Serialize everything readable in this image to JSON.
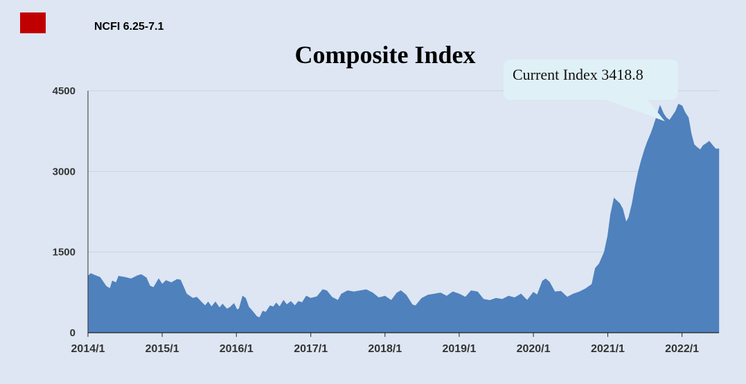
{
  "legend": {
    "label": "NCFI 6.25-7.1",
    "color": "#c00000"
  },
  "annotation": {
    "text": "Current Index 3418.8"
  },
  "chart_data": {
    "type": "area",
    "title": "Composite Index",
    "xlabel": "",
    "ylabel": "",
    "ylim": [
      0,
      4500
    ],
    "y_ticks": [
      "0",
      "1500",
      "3000",
      "4500"
    ],
    "x_tick_labels": [
      "2014/1",
      "2015/1",
      "2016/1",
      "2017/1",
      "2018/1",
      "2019/1",
      "2020/1",
      "2021/1",
      "2022/1"
    ],
    "grid": true,
    "fill_color": "#4f81bd",
    "series": [
      {
        "name": "NCFI 6.25-7.1",
        "points": [
          [
            "2014-01-01",
            1050
          ],
          [
            "2014-01-15",
            1100
          ],
          [
            "2014-02-01",
            1070
          ],
          [
            "2014-03-01",
            1030
          ],
          [
            "2014-04-01",
            860
          ],
          [
            "2014-04-20",
            820
          ],
          [
            "2014-05-01",
            960
          ],
          [
            "2014-05-20",
            930
          ],
          [
            "2014-06-01",
            1050
          ],
          [
            "2014-07-01",
            1030
          ],
          [
            "2014-08-01",
            1000
          ],
          [
            "2014-09-01",
            1060
          ],
          [
            "2014-09-20",
            1080
          ],
          [
            "2014-10-15",
            1020
          ],
          [
            "2014-11-01",
            870
          ],
          [
            "2014-11-20",
            840
          ],
          [
            "2014-12-15",
            1000
          ],
          [
            "2015-01-01",
            900
          ],
          [
            "2015-01-20",
            970
          ],
          [
            "2015-02-15",
            930
          ],
          [
            "2015-03-15",
            990
          ],
          [
            "2015-04-01",
            980
          ],
          [
            "2015-05-01",
            720
          ],
          [
            "2015-06-01",
            640
          ],
          [
            "2015-06-20",
            660
          ],
          [
            "2015-07-15",
            560
          ],
          [
            "2015-08-01",
            500
          ],
          [
            "2015-08-15",
            570
          ],
          [
            "2015-09-01",
            480
          ],
          [
            "2015-09-20",
            570
          ],
          [
            "2015-10-10",
            460
          ],
          [
            "2015-10-25",
            530
          ],
          [
            "2015-11-15",
            440
          ],
          [
            "2015-12-01",
            470
          ],
          [
            "2015-12-20",
            540
          ],
          [
            "2016-01-05",
            420
          ],
          [
            "2016-01-15",
            450
          ],
          [
            "2016-02-01",
            680
          ],
          [
            "2016-02-15",
            640
          ],
          [
            "2016-03-01",
            480
          ],
          [
            "2016-03-20",
            400
          ],
          [
            "2016-04-10",
            300
          ],
          [
            "2016-04-25",
            280
          ],
          [
            "2016-05-10",
            400
          ],
          [
            "2016-05-25",
            380
          ],
          [
            "2016-06-15",
            500
          ],
          [
            "2016-07-01",
            480
          ],
          [
            "2016-07-15",
            550
          ],
          [
            "2016-08-01",
            480
          ],
          [
            "2016-08-20",
            600
          ],
          [
            "2016-09-05",
            520
          ],
          [
            "2016-09-25",
            580
          ],
          [
            "2016-10-15",
            500
          ],
          [
            "2016-11-01",
            580
          ],
          [
            "2016-11-20",
            560
          ],
          [
            "2016-12-10",
            680
          ],
          [
            "2017-01-01",
            640
          ],
          [
            "2017-02-01",
            670
          ],
          [
            "2017-03-01",
            800
          ],
          [
            "2017-03-20",
            780
          ],
          [
            "2017-04-15",
            660
          ],
          [
            "2017-05-15",
            600
          ],
          [
            "2017-06-01",
            720
          ],
          [
            "2017-07-01",
            780
          ],
          [
            "2017-08-01",
            760
          ],
          [
            "2017-09-01",
            780
          ],
          [
            "2017-10-01",
            800
          ],
          [
            "2017-11-01",
            740
          ],
          [
            "2017-12-01",
            650
          ],
          [
            "2018-01-01",
            680
          ],
          [
            "2018-02-01",
            600
          ],
          [
            "2018-03-01",
            740
          ],
          [
            "2018-03-20",
            780
          ],
          [
            "2018-04-15",
            700
          ],
          [
            "2018-05-15",
            520
          ],
          [
            "2018-06-01",
            500
          ],
          [
            "2018-07-01",
            640
          ],
          [
            "2018-08-01",
            700
          ],
          [
            "2018-09-01",
            720
          ],
          [
            "2018-10-01",
            740
          ],
          [
            "2018-11-01",
            680
          ],
          [
            "2018-12-01",
            760
          ],
          [
            "2019-01-01",
            720
          ],
          [
            "2019-02-01",
            660
          ],
          [
            "2019-03-01",
            780
          ],
          [
            "2019-04-01",
            760
          ],
          [
            "2019-05-01",
            620
          ],
          [
            "2019-06-01",
            600
          ],
          [
            "2019-07-01",
            640
          ],
          [
            "2019-08-01",
            620
          ],
          [
            "2019-09-01",
            680
          ],
          [
            "2019-10-01",
            650
          ],
          [
            "2019-11-01",
            720
          ],
          [
            "2019-12-01",
            600
          ],
          [
            "2020-01-01",
            750
          ],
          [
            "2020-01-20",
            700
          ],
          [
            "2020-02-15",
            960
          ],
          [
            "2020-03-01",
            1000
          ],
          [
            "2020-03-20",
            940
          ],
          [
            "2020-04-15",
            760
          ],
          [
            "2020-05-15",
            770
          ],
          [
            "2020-06-15",
            660
          ],
          [
            "2020-07-15",
            720
          ],
          [
            "2020-08-15",
            760
          ],
          [
            "2020-09-15",
            820
          ],
          [
            "2020-10-15",
            900
          ],
          [
            "2020-11-01",
            1200
          ],
          [
            "2020-11-20",
            1280
          ],
          [
            "2020-12-15",
            1500
          ],
          [
            "2021-01-01",
            1800
          ],
          [
            "2021-01-15",
            2200
          ],
          [
            "2021-02-01",
            2500
          ],
          [
            "2021-02-15",
            2450
          ],
          [
            "2021-03-01",
            2400
          ],
          [
            "2021-03-15",
            2300
          ],
          [
            "2021-04-01",
            2050
          ],
          [
            "2021-04-15",
            2150
          ],
          [
            "2021-05-01",
            2400
          ],
          [
            "2021-05-15",
            2700
          ],
          [
            "2021-06-01",
            3000
          ],
          [
            "2021-06-15",
            3200
          ],
          [
            "2021-07-01",
            3400
          ],
          [
            "2021-07-15",
            3550
          ],
          [
            "2021-08-01",
            3700
          ],
          [
            "2021-08-15",
            3850
          ],
          [
            "2021-09-01",
            4050
          ],
          [
            "2021-09-15",
            4220
          ],
          [
            "2021-10-01",
            4080
          ],
          [
            "2021-10-15",
            4000
          ],
          [
            "2021-11-01",
            3950
          ],
          [
            "2021-11-15",
            4030
          ],
          [
            "2021-12-01",
            4120
          ],
          [
            "2021-12-15",
            4250
          ],
          [
            "2022-01-01",
            4220
          ],
          [
            "2022-01-15",
            4100
          ],
          [
            "2022-02-01",
            4000
          ],
          [
            "2022-02-15",
            3700
          ],
          [
            "2022-03-01",
            3500
          ],
          [
            "2022-03-15",
            3450
          ],
          [
            "2022-04-01",
            3400
          ],
          [
            "2022-04-15",
            3480
          ],
          [
            "2022-05-01",
            3520
          ],
          [
            "2022-05-15",
            3560
          ],
          [
            "2022-06-01",
            3480
          ],
          [
            "2022-06-15",
            3420
          ],
          [
            "2022-07-01",
            3418.8
          ]
        ]
      }
    ]
  }
}
